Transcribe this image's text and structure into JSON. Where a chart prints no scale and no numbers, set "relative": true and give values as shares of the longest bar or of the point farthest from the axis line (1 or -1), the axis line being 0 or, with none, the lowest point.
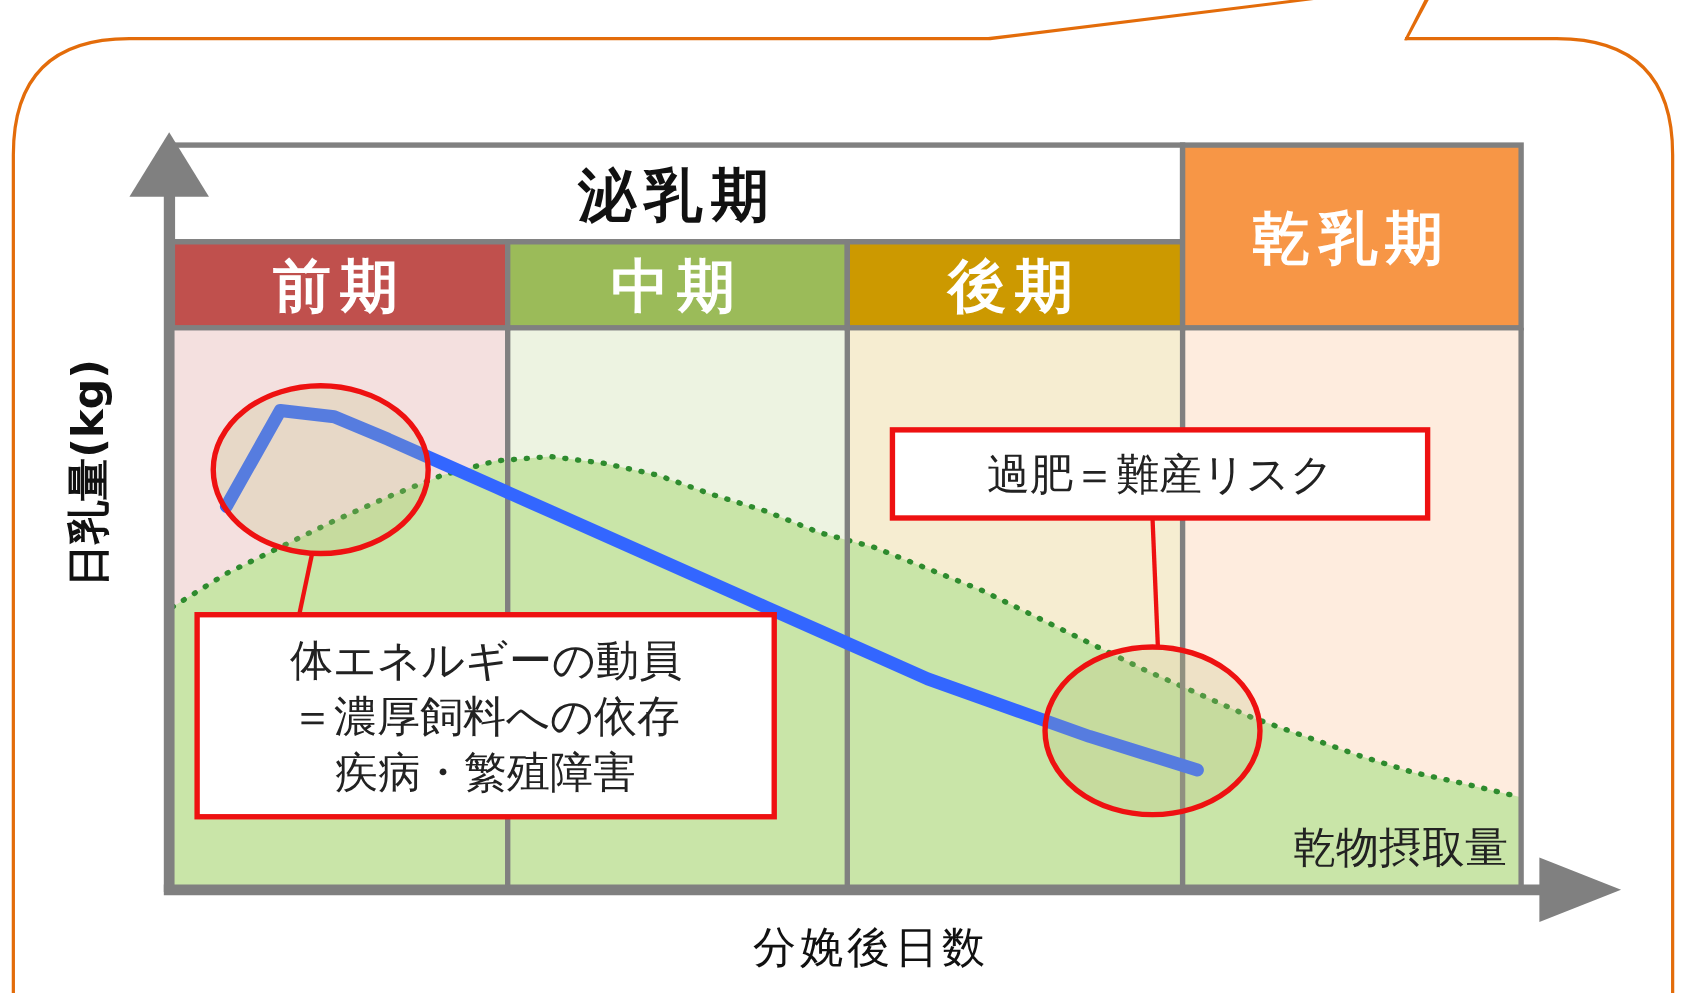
{
  "chart_data": {
    "type": "line",
    "relative": true,
    "tick_labels": false,
    "ylabel": "日乳量(kg)",
    "xlabel": "分娩後日数",
    "categories": [
      null,
      null,
      null,
      null,
      null,
      null,
      null,
      null,
      null,
      null,
      null,
      null,
      null,
      null,
      null,
      null,
      null,
      null,
      null,
      null,
      null,
      null,
      null,
      null,
      null,
      null
    ],
    "series": [
      {
        "type": "line",
        "color": "#3366ff",
        "values": [
          null,
          0.8,
          1.0,
          0.987,
          0.94,
          0.89,
          0.84,
          0.79,
          0.74,
          0.69,
          0.64,
          0.59,
          0.54,
          0.49,
          0.44,
          0.4,
          0.36,
          0.32,
          0.285,
          0.25,
          null,
          null,
          null,
          null,
          null,
          null
        ]
      },
      {
        "type": "area",
        "name": "乾物摂取量",
        "color": "#c9e5a8",
        "line_style": "dotted",
        "values": [
          0.59,
          0.66,
          0.715,
          0.77,
          0.82,
          0.865,
          0.895,
          0.904,
          0.89,
          0.865,
          0.825,
          0.79,
          0.745,
          0.715,
          0.67,
          0.625,
          0.57,
          0.515,
          0.46,
          0.41,
          0.36,
          0.32,
          0.28,
          0.245,
          0.22,
          0.193
        ]
      }
    ],
    "annotations": [
      "泌乳期",
      "前期",
      "中期",
      "後期",
      "乾乳期",
      "体エネルギーの動員＝濃厚飼料への依存疾病・繁殖障害",
      "過肥＝難産リスク"
    ]
  }
}
